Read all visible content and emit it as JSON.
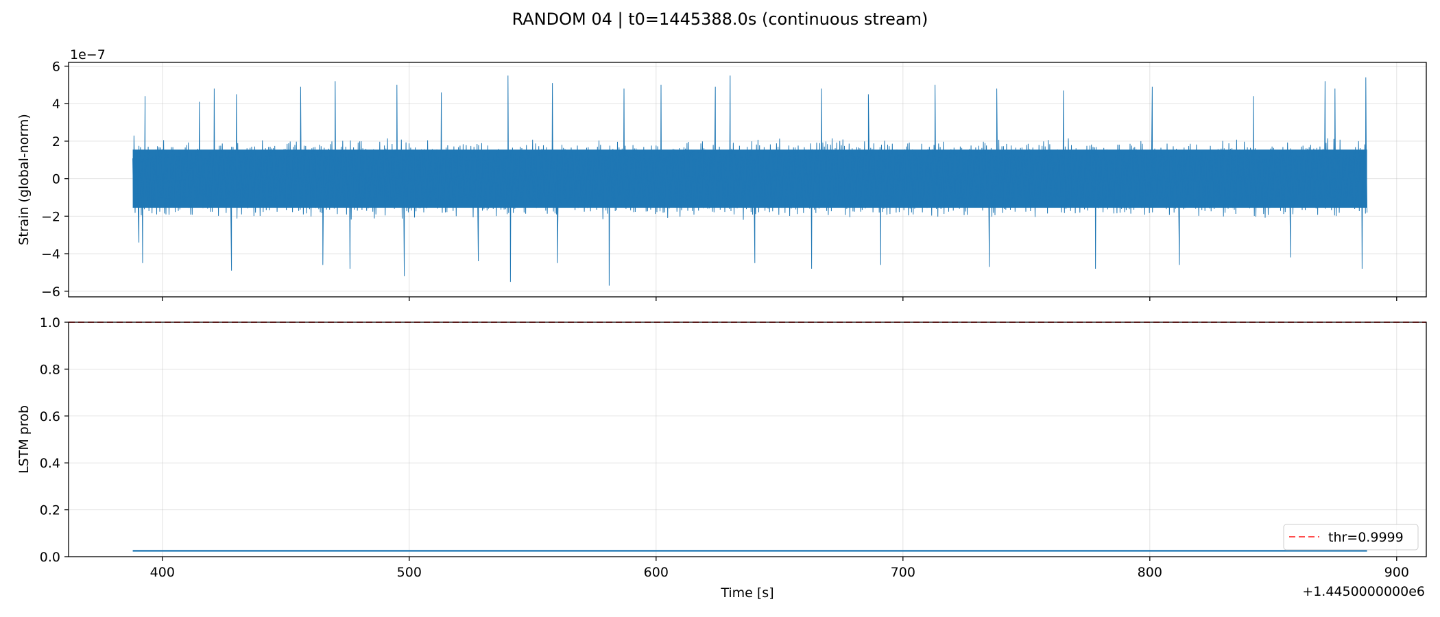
{
  "chart_data": [
    {
      "type": "line",
      "title": "RANDOM 04 | t0=1445388.0s (continuous stream)",
      "ylabel": "Strain (global-norm)",
      "y_scale_label": "1e−7",
      "y_scale_factor": 1e-07,
      "xlim": [
        1445362,
        1445912
      ],
      "ylim": [
        -6.3e-07,
        6.2e-07
      ],
      "yticks": [
        -6e-07,
        -4e-07,
        -2e-07,
        0,
        2e-07,
        4e-07,
        6e-07
      ],
      "ytick_labels": [
        "−6",
        "−4",
        "−2",
        "0",
        "2",
        "4",
        "6"
      ],
      "grid": true,
      "color": "#1f77b4",
      "series": [
        {
          "x_start": 1445388.0,
          "x_end": 1445888.0,
          "samples": 1600,
          "envelope_typical": 2e-07,
          "envelope_peak": 5.5e-07,
          "peaks": [
            [
              1445388.5,
              2.3e-07
            ],
            [
              1445390.5,
              -3.4e-07
            ],
            [
              1445392.0,
              -4.5e-07
            ],
            [
              1445393.0,
              4.4e-07
            ],
            [
              1445415.0,
              4.1e-07
            ],
            [
              1445421.0,
              4.8e-07
            ],
            [
              1445428.0,
              -4.9e-07
            ],
            [
              1445430.0,
              4.5e-07
            ],
            [
              1445456.0,
              4.9e-07
            ],
            [
              1445465.0,
              -4.6e-07
            ],
            [
              1445470.0,
              5.2e-07
            ],
            [
              1445476.0,
              -4.8e-07
            ],
            [
              1445495.0,
              5e-07
            ],
            [
              1445498.0,
              -5.2e-07
            ],
            [
              1445513.0,
              4.6e-07
            ],
            [
              1445528.0,
              -4.4e-07
            ],
            [
              1445540.0,
              5.5e-07
            ],
            [
              1445541.0,
              -5.5e-07
            ],
            [
              1445558.0,
              5.1e-07
            ],
            [
              1445560.0,
              -4.5e-07
            ],
            [
              1445581.0,
              -5.7e-07
            ],
            [
              1445587.0,
              4.8e-07
            ],
            [
              1445602.0,
              5e-07
            ],
            [
              1445624.0,
              4.9e-07
            ],
            [
              1445630.0,
              5.5e-07
            ],
            [
              1445640.0,
              -4.5e-07
            ],
            [
              1445663.0,
              -4.8e-07
            ],
            [
              1445667.0,
              4.8e-07
            ],
            [
              1445686.0,
              4.5e-07
            ],
            [
              1445691.0,
              -4.6e-07
            ],
            [
              1445713.0,
              5e-07
            ],
            [
              1445735.0,
              -4.7e-07
            ],
            [
              1445738.0,
              4.8e-07
            ],
            [
              1445765.0,
              4.7e-07
            ],
            [
              1445778.0,
              -4.8e-07
            ],
            [
              1445801.0,
              4.9e-07
            ],
            [
              1445812.0,
              -4.6e-07
            ],
            [
              1445842.0,
              4.4e-07
            ],
            [
              1445857.0,
              -4.2e-07
            ],
            [
              1445871.0,
              5.2e-07
            ],
            [
              1445875.0,
              4.8e-07
            ],
            [
              1445886.0,
              -4.8e-07
            ],
            [
              1445887.5,
              5.4e-07
            ]
          ]
        }
      ]
    },
    {
      "type": "line",
      "ylabel": "LSTM prob",
      "xlabel": "Time [s]",
      "x_offset_label": "+1.4450000000e6",
      "xlim": [
        1445362,
        1445912
      ],
      "ylim": [
        0.0,
        1.0
      ],
      "xticks": [
        1445400,
        1445500,
        1445600,
        1445700,
        1445800,
        1445900
      ],
      "xtick_labels": [
        "400",
        "500",
        "600",
        "700",
        "800",
        "900"
      ],
      "yticks": [
        0.0,
        0.2,
        0.4,
        0.6,
        0.8,
        1.0
      ],
      "ytick_labels": [
        "0.0",
        "0.2",
        "0.4",
        "0.6",
        "0.8",
        "1.0"
      ],
      "grid": true,
      "legend_position": "bottom-right",
      "series": [
        {
          "x": [
            1445388.0,
            1445888.0
          ],
          "y": [
            0.025,
            0.025
          ],
          "color": "#1f77b4"
        }
      ],
      "threshold": {
        "name": "thr=0.9999",
        "value": 0.9999,
        "color": "#ff4d4d",
        "style": "dashed"
      }
    }
  ]
}
